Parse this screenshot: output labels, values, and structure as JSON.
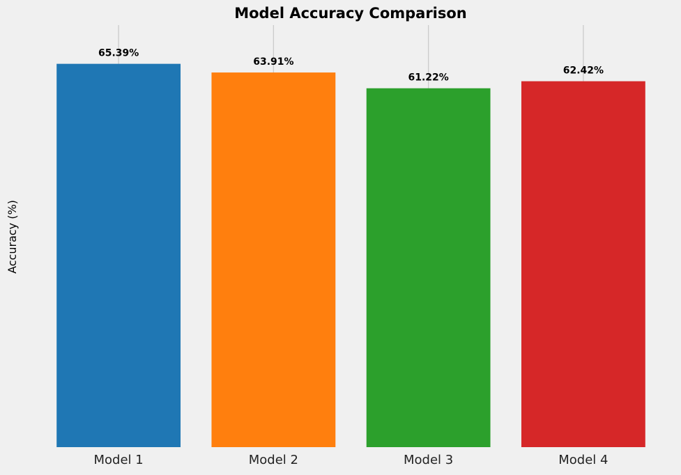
{
  "chart_data": {
    "type": "bar",
    "title": "Model Accuracy Comparison",
    "xlabel": "",
    "ylabel": "Accuracy (%)",
    "categories": [
      "Model 1",
      "Model 2",
      "Model 3",
      "Model 4"
    ],
    "values": [
      65.39,
      63.91,
      61.22,
      62.42
    ],
    "data_labels": [
      "65.39%",
      "63.91%",
      "61.22%",
      "62.42%"
    ],
    "colors": [
      "#1f77b4",
      "#ff7f0e",
      "#2ca02c",
      "#d62728"
    ],
    "ylim": [
      0,
      72
    ],
    "grid": "vertical lines at category positions",
    "y_ticks_shown": false
  }
}
